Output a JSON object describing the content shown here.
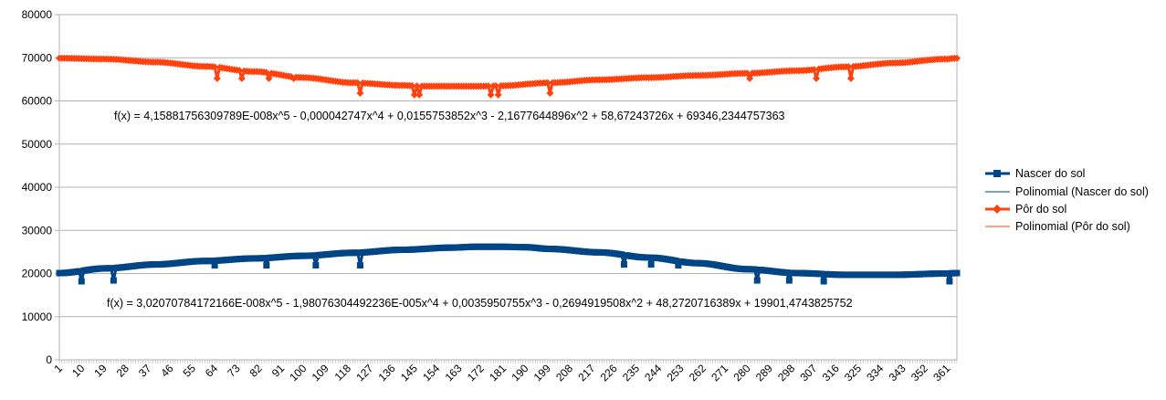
{
  "chart_data": {
    "type": "line",
    "title": "",
    "xlabel": "",
    "ylabel": "",
    "ylim": [
      0,
      80000
    ],
    "yticks": [
      0,
      10000,
      20000,
      30000,
      40000,
      50000,
      60000,
      70000,
      80000
    ],
    "xrange": [
      1,
      365
    ],
    "xtick_labels": [
      "1",
      "10",
      "19",
      "28",
      "37",
      "46",
      "55",
      "64",
      "73",
      "82",
      "91",
      "100",
      "109",
      "118",
      "127",
      "136",
      "145",
      "154",
      "163",
      "172",
      "181",
      "190",
      "199",
      "208",
      "217",
      "226",
      "235",
      "244",
      "253",
      "262",
      "271",
      "280",
      "289",
      "298",
      "307",
      "316",
      "325",
      "334",
      "343",
      "352",
      "361"
    ],
    "grid": "horizontal",
    "legend_position": "right",
    "legend": [
      "Nascer do sol",
      "Polinomial (Nascer do sol)",
      "Pôr do sol",
      "Polinomial (Pôr do sol)"
    ],
    "colors": {
      "sunrise": "#004586",
      "sunset": "#ff420e",
      "grid": "#b3b3b3",
      "axis": "#b3b3b3"
    },
    "series": [
      {
        "name": "Nascer do sol",
        "marker": "square",
        "x": [
          1,
          20,
          40,
          60,
          80,
          100,
          120,
          140,
          160,
          170,
          180,
          190,
          200,
          220,
          240,
          260,
          280,
          300,
          320,
          340,
          360,
          365
        ],
        "values": [
          20100,
          21200,
          22100,
          22900,
          23500,
          24100,
          24800,
          25500,
          26000,
          26200,
          26200,
          26100,
          25700,
          24900,
          23700,
          22400,
          21000,
          20100,
          19700,
          19700,
          20000,
          20100
        ],
        "outliers": [
          [
            10,
            18200
          ],
          [
            23,
            18400
          ],
          [
            64,
            21900
          ],
          [
            85,
            21900
          ],
          [
            105,
            21900
          ],
          [
            123,
            21900
          ],
          [
            230,
            22100
          ],
          [
            241,
            22100
          ],
          [
            252,
            21900
          ],
          [
            284,
            18400
          ],
          [
            297,
            18400
          ],
          [
            311,
            18200
          ],
          [
            362,
            18200
          ]
        ]
      },
      {
        "name": "Pôr do sol",
        "marker": "diamond",
        "x": [
          1,
          20,
          40,
          60,
          80,
          100,
          120,
          140,
          150,
          160,
          170,
          180,
          200,
          220,
          240,
          260,
          280,
          300,
          320,
          340,
          360,
          365
        ],
        "values": [
          69900,
          69700,
          69000,
          68000,
          66800,
          65400,
          64200,
          63600,
          63400,
          63400,
          63400,
          63500,
          64200,
          64900,
          65400,
          65900,
          66400,
          67000,
          67900,
          68800,
          69700,
          69900
        ],
        "outliers": [
          [
            65,
            65200
          ],
          [
            75,
            65200
          ],
          [
            86,
            65200
          ],
          [
            96,
            65200
          ],
          [
            123,
            61800
          ],
          [
            145,
            61400
          ],
          [
            147,
            61400
          ],
          [
            176,
            61400
          ],
          [
            179,
            61400
          ],
          [
            200,
            61800
          ],
          [
            281,
            65200
          ],
          [
            308,
            65200
          ],
          [
            322,
            65200
          ]
        ]
      }
    ],
    "trendlines": [
      {
        "name": "Polinomial (Nascer do sol)",
        "equation": "f(x) = 3,02070784172166E-008x^5 - 1,98076304492236E-005x^4 + 0,0035950755x^3 - 0,2694919508x^2 + 48,2720716389x + 19901,4743825752"
      },
      {
        "name": "Polinomial (Pôr do sol)",
        "equation": "f(x) = 4,15881756309789E-008x^5 - 0,000042747x^4 + 0,0155753852x^3 - 2,1677644896x^2 + 58,67243726x + 69346,2344757363"
      }
    ]
  }
}
